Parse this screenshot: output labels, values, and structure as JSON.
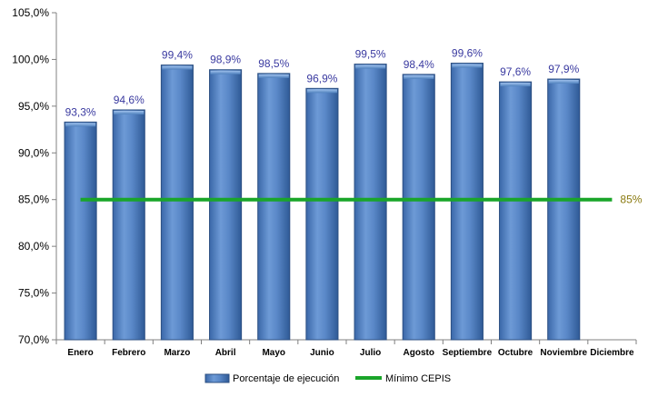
{
  "chart_data": {
    "type": "bar",
    "categories": [
      "Enero",
      "Febrero",
      "Marzo",
      "Abril",
      "Mayo",
      "Junio",
      "Julio",
      "Agosto",
      "Septiembre",
      "Octubre",
      "Noviembre",
      "Diciembre"
    ],
    "series": [
      {
        "name": "Porcentaje de ejecución",
        "values": [
          93.3,
          94.6,
          99.4,
          98.9,
          98.5,
          96.9,
          99.5,
          98.4,
          99.6,
          97.6,
          97.9,
          null
        ],
        "labels": [
          "93,3%",
          "94,6%",
          "99,4%",
          "98,9%",
          "98,5%",
          "96,9%",
          "99,5%",
          "98,4%",
          "99,6%",
          "97,6%",
          "97,9%",
          ""
        ],
        "color": "#4f81bd"
      },
      {
        "name": "Mínimo CEPIS",
        "type": "line",
        "value": 85,
        "label": "85%",
        "color": "#1aa52a"
      }
    ],
    "y_ticks": [
      "70,0%",
      "75,0%",
      "80,0%",
      "85,0%",
      "90,0%",
      "95,0%",
      "100,0%",
      "105,0%"
    ],
    "ylim": [
      70,
      105
    ],
    "grid": false,
    "legend": "bottom",
    "title": "",
    "xlabel": "",
    "ylabel": ""
  }
}
